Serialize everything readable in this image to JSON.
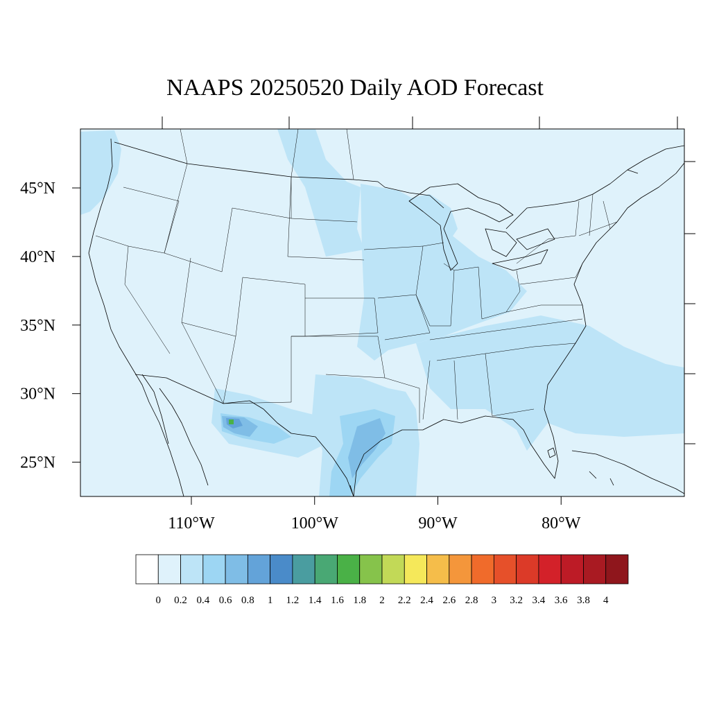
{
  "title": "NAAPS 20250520 Daily AOD Forecast",
  "map": {
    "lon_range": [
      -119,
      -70
    ],
    "lat_range": [
      22.5,
      49.3
    ],
    "lat_ticks": [
      {
        "value": 45,
        "label": "45°N"
      },
      {
        "value": 40,
        "label": "40°N"
      },
      {
        "value": 35,
        "label": "35°N"
      },
      {
        "value": 30,
        "label": "30°N"
      },
      {
        "value": 25,
        "label": "25°N"
      }
    ],
    "lon_ticks": [
      {
        "value": -110,
        "label": "110°W"
      },
      {
        "value": -100,
        "label": "100°W"
      },
      {
        "value": -90,
        "label": "90°W"
      },
      {
        "value": -80,
        "label": "80°W"
      }
    ],
    "background_level_color": "#dff2fb",
    "ocean_color": "#dff2fb",
    "line_color": "#000000"
  },
  "aod_field": [
    {
      "name": "west-coast-plume",
      "level": 2,
      "color": "#bde4f7"
    },
    {
      "name": "northern-plains-band",
      "level": 2,
      "color": "#bde4f7"
    },
    {
      "name": "midwest-plume",
      "level": 2,
      "color": "#bde4f7"
    },
    {
      "name": "great-lakes-plume",
      "level": 2,
      "color": "#bde4f7"
    },
    {
      "name": "southeast-atlantic-plume",
      "level": 2,
      "color": "#bde4f7"
    },
    {
      "name": "gulf-coast-plume",
      "level": 2,
      "color": "#bde4f7"
    },
    {
      "name": "mexico-plateau-plume",
      "level": 2,
      "color": "#bde4f7"
    },
    {
      "name": "east-texas-core",
      "level": 3,
      "color": "#9dd6f3"
    },
    {
      "name": "east-texas-inner",
      "level": 4,
      "color": "#7fbde6"
    },
    {
      "name": "sonora-plume",
      "level": 3,
      "color": "#9dd6f3"
    },
    {
      "name": "sonora-core",
      "level": 4,
      "color": "#7fbde6"
    },
    {
      "name": "sonora-hotspot",
      "level": 5,
      "color": "#63a3d9"
    },
    {
      "name": "sonora-peak",
      "level": 8,
      "color": "#4ab147"
    }
  ],
  "colorbar": {
    "colors": [
      "#ffffff",
      "#dff2fb",
      "#bde4f7",
      "#9dd6f3",
      "#7fbde6",
      "#63a3d9",
      "#4a8bc9",
      "#4a9da0",
      "#49a874",
      "#4ab147",
      "#86c34b",
      "#c2d957",
      "#f5e85a",
      "#f5bd4a",
      "#f4963b",
      "#f06b2b",
      "#e6502a",
      "#dc3a28",
      "#d32129",
      "#bd1b26",
      "#a91a22",
      "#8f161c"
    ],
    "labels": [
      "0",
      "0.2",
      "0.4",
      "0.6",
      "0.8",
      "1",
      "1.2",
      "1.4",
      "1.6",
      "1.8",
      "2",
      "2.2",
      "2.4",
      "2.6",
      "2.8",
      "3",
      "3.2",
      "3.4",
      "3.6",
      "3.8",
      "4"
    ]
  }
}
